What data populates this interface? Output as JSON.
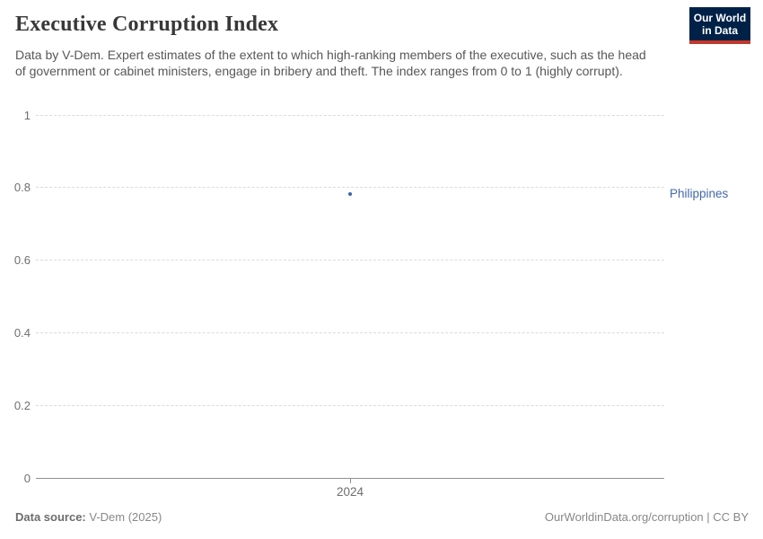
{
  "logo": {
    "line1": "Our World",
    "line2": "in Data",
    "bg_color": "#002147",
    "accent_color": "#c0392b"
  },
  "header": {
    "title": "Executive Corruption Index",
    "subtitle": "Data by V-Dem. Expert estimates of the extent to which high-ranking members of the executive, such as the head of government or cabinet ministers, engage in bribery and theft. The index ranges from 0 to 1 (highly corrupt)."
  },
  "chart_data": {
    "type": "scatter",
    "title": "Executive Corruption Index",
    "x": [
      2024
    ],
    "series": [
      {
        "name": "Philippines",
        "values": [
          0.78
        ],
        "color": "#3d63a8",
        "label_color": "#4268ab"
      }
    ],
    "xlabel": "",
    "ylabel": "",
    "ylim": [
      0,
      1
    ],
    "yticks": [
      0,
      0.2,
      0.4,
      0.6,
      0.8,
      1
    ],
    "ytick_labels": [
      "0",
      "0.2",
      "0.4",
      "0.6",
      "0.8",
      "1"
    ],
    "xticks": [
      2024
    ],
    "xtick_labels": [
      "2024"
    ],
    "grid": "horizontal-dashed",
    "gridline_color": "#dbdbdb",
    "axis_color": "#8f8f8f",
    "legend_position": "right-of-point"
  },
  "footer": {
    "source_label": "Data source:",
    "source_value": " V-Dem (2025)",
    "credit": "OurWorldinData.org/corruption | CC BY"
  }
}
